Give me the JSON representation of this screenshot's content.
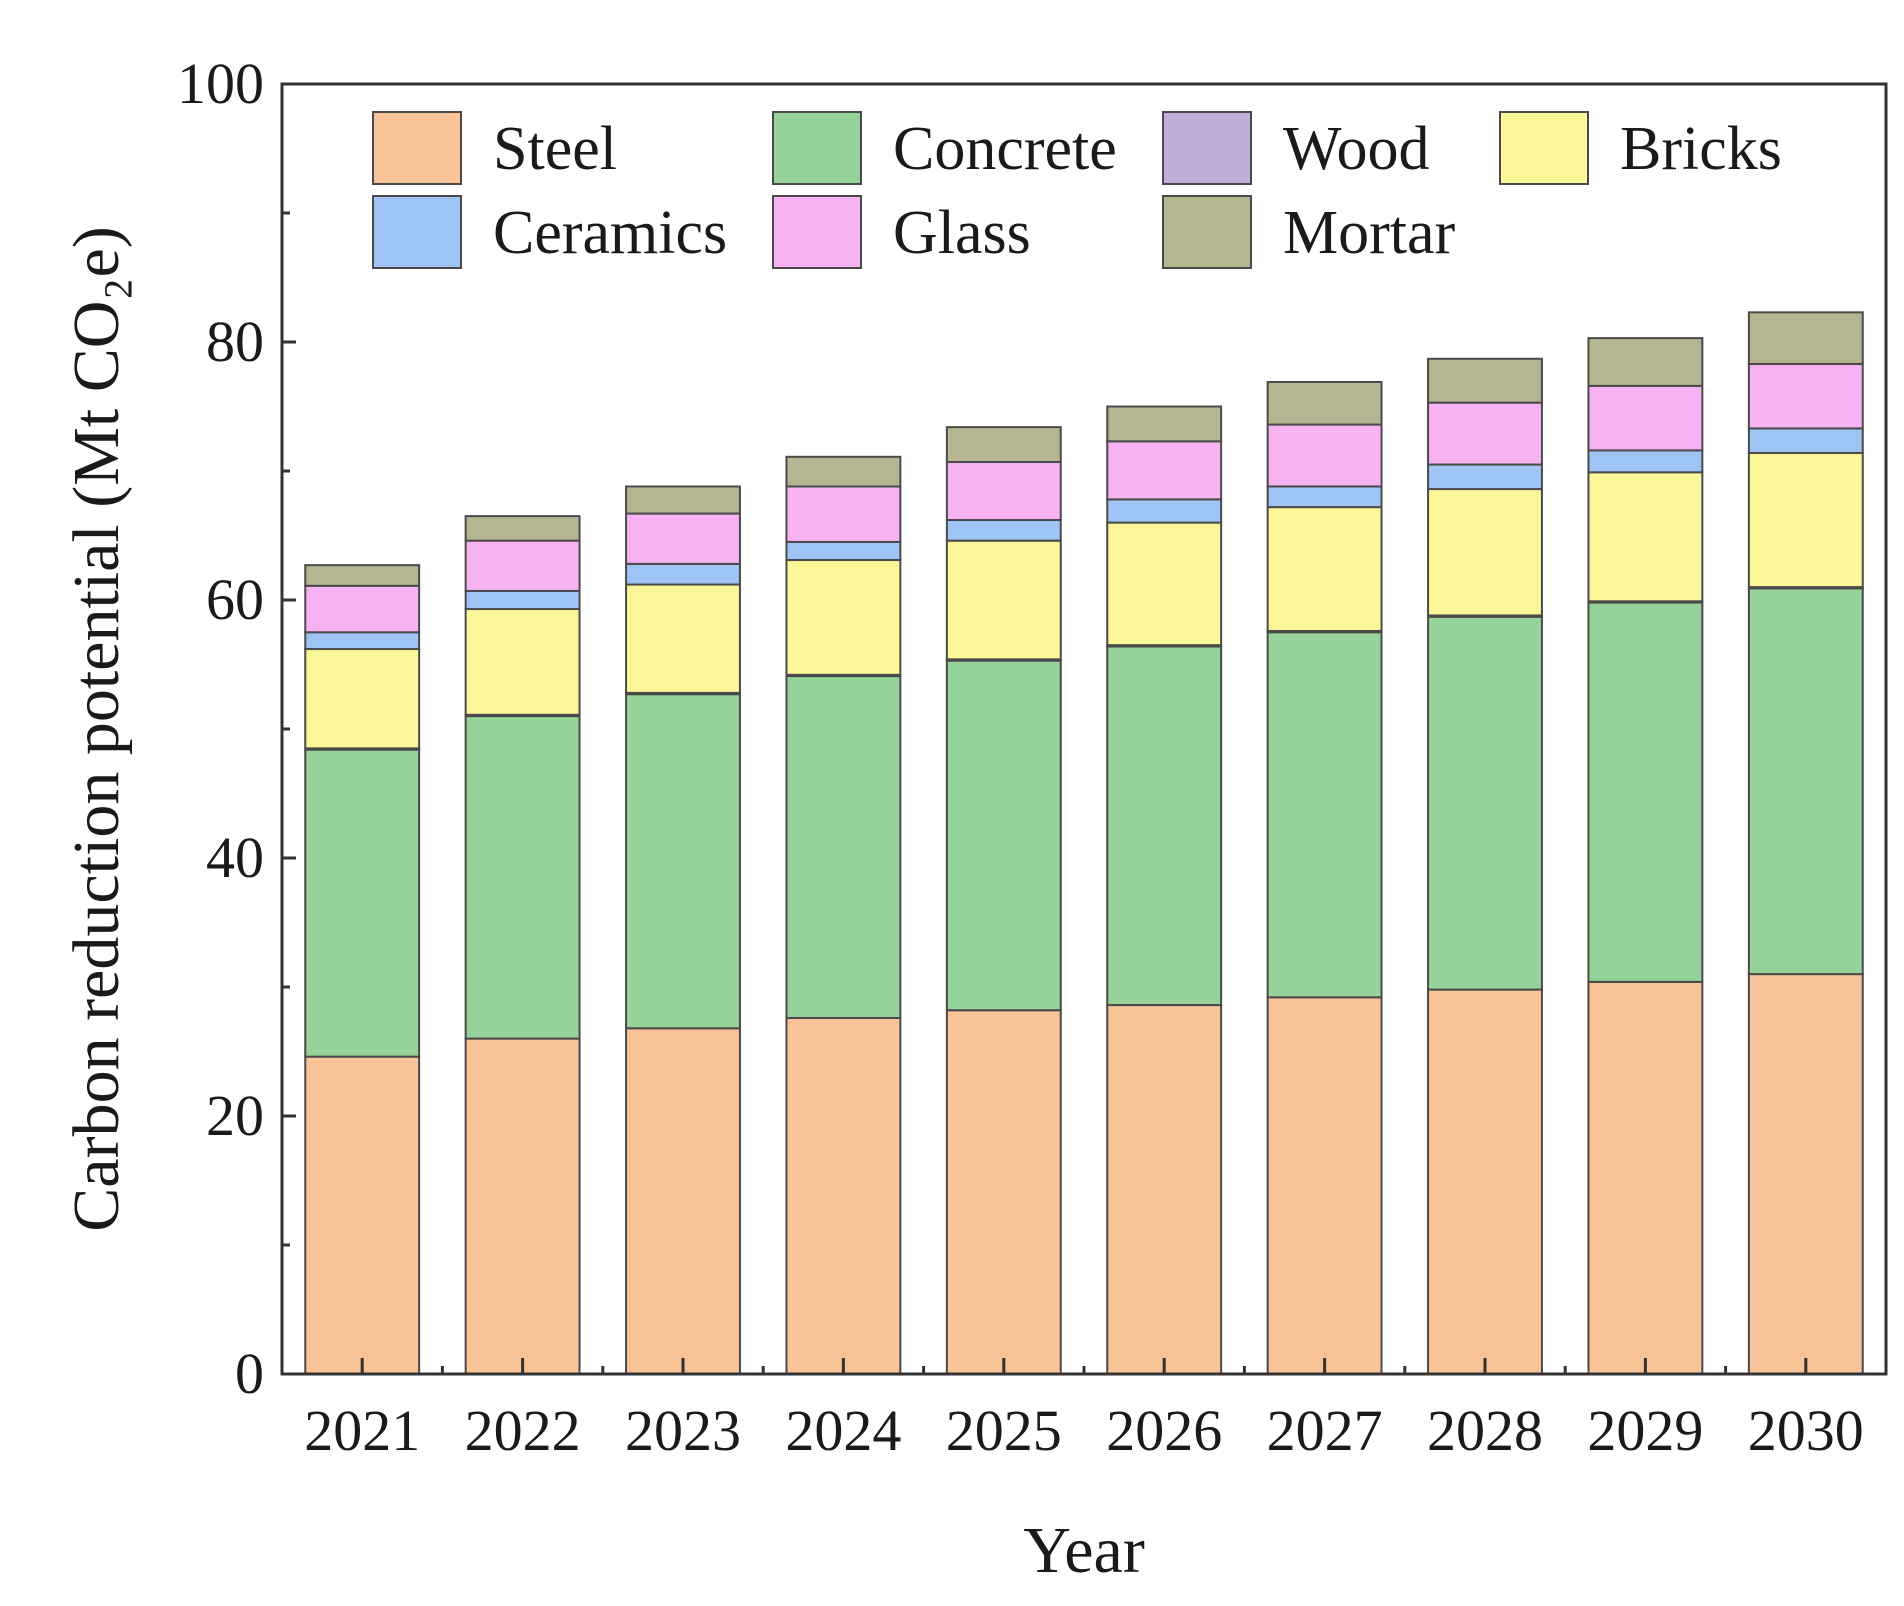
{
  "chart_data": {
    "type": "bar",
    "stacked": true,
    "title": "",
    "xlabel": "Year",
    "ylabel": "Carbon reduction potential (Mt CO₂e)",
    "ylim": [
      0,
      100
    ],
    "y_ticks": [
      "0",
      "20",
      "40",
      "60",
      "80",
      "100"
    ],
    "categories": [
      "2021",
      "2022",
      "2023",
      "2024",
      "2025",
      "2026",
      "2027",
      "2028",
      "2029",
      "2030"
    ],
    "legend_position": "top-inside",
    "series": [
      {
        "name": "Steel",
        "color": "#f8c396",
        "values": [
          24.6,
          26.0,
          26.8,
          27.6,
          28.2,
          28.6,
          29.2,
          29.8,
          30.4,
          31.0
        ]
      },
      {
        "name": "Concrete",
        "color": "#96d39a",
        "values": [
          23.8,
          25.0,
          25.9,
          26.5,
          27.1,
          27.8,
          28.3,
          28.9,
          29.4,
          29.9
        ]
      },
      {
        "name": "Wood",
        "color": "#c0aed8",
        "values": [
          0.1,
          0.1,
          0.1,
          0.1,
          0.1,
          0.1,
          0.1,
          0.1,
          0.1,
          0.1
        ]
      },
      {
        "name": "Bricks",
        "color": "#fbf697",
        "values": [
          7.7,
          8.2,
          8.4,
          8.9,
          9.2,
          9.5,
          9.6,
          9.8,
          10.0,
          10.4
        ]
      },
      {
        "name": "Ceramics",
        "color": "#9ec4f5",
        "values": [
          1.3,
          1.4,
          1.6,
          1.4,
          1.6,
          1.8,
          1.6,
          1.9,
          1.7,
          1.9
        ]
      },
      {
        "name": "Glass",
        "color": "#f6b2f1",
        "values": [
          3.6,
          3.9,
          3.9,
          4.3,
          4.5,
          4.5,
          4.8,
          4.8,
          5.0,
          5.0
        ]
      },
      {
        "name": "Mortar",
        "color": "#b6b591",
        "values": [
          1.6,
          1.9,
          2.1,
          2.3,
          2.7,
          2.7,
          3.3,
          3.4,
          3.7,
          4.0
        ]
      }
    ]
  }
}
